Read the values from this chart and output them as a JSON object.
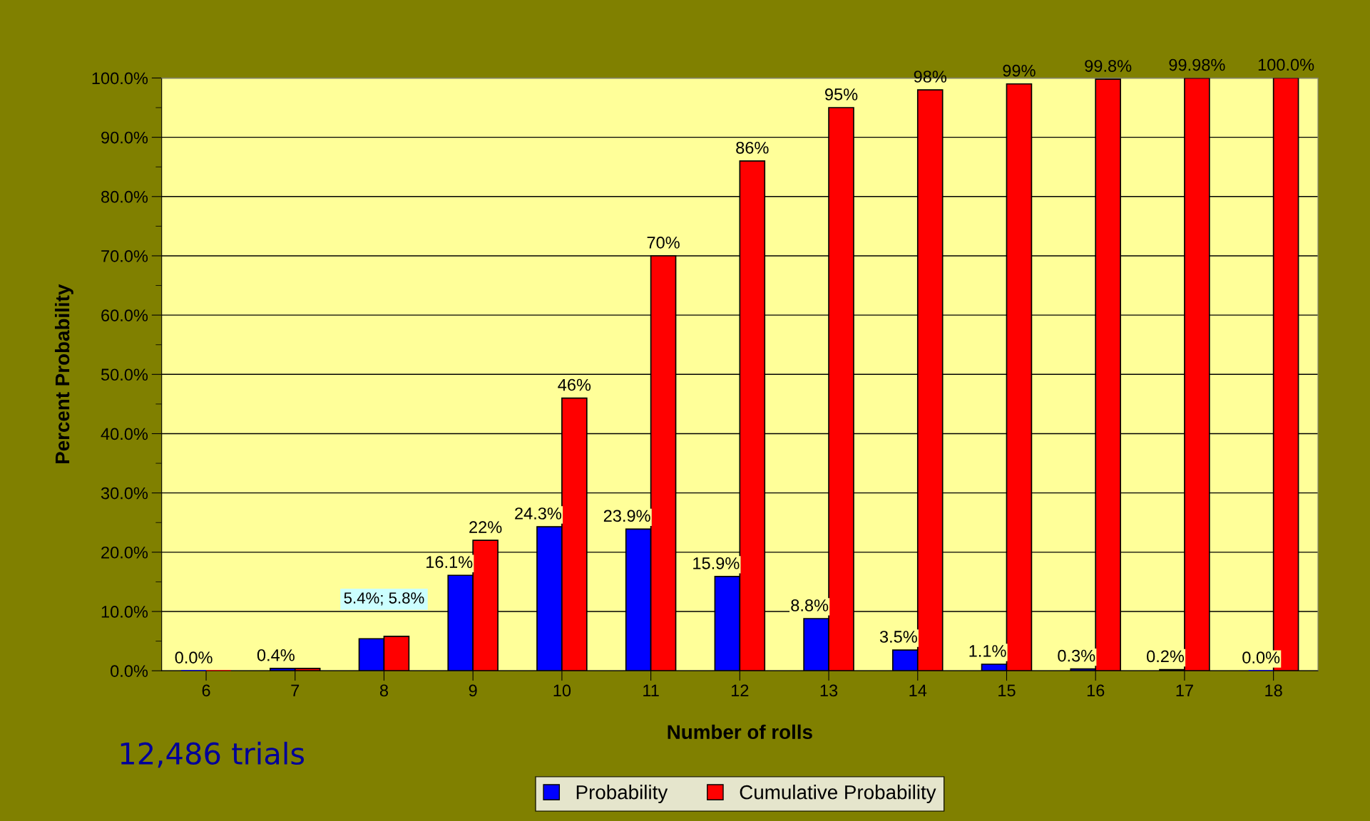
{
  "chart_data": {
    "type": "bar",
    "xlabel": "Number of rolls",
    "ylabel": "Percent Probability",
    "categories": [
      "6",
      "7",
      "8",
      "9",
      "10",
      "11",
      "12",
      "13",
      "14",
      "15",
      "16",
      "17",
      "18"
    ],
    "series": [
      {
        "name": "Probability",
        "color": "#0000ff",
        "values": [
          0.0,
          0.4,
          5.4,
          16.1,
          24.3,
          23.9,
          15.9,
          8.8,
          3.5,
          1.1,
          0.3,
          0.2,
          0.0
        ],
        "value_labels": [
          "0.0%",
          "0.4%",
          null,
          "16.1%",
          "24.3%",
          "23.9%",
          "15.9%",
          "8.8%",
          "3.5%",
          "1.1%",
          "0.3%",
          "0.2%",
          "0.0%"
        ]
      },
      {
        "name": "Cumulative Probability",
        "color": "#ff0000",
        "values": [
          0.0,
          0.4,
          5.8,
          22,
          46,
          70,
          86,
          95,
          98,
          99,
          99.8,
          99.98,
          100.0
        ],
        "value_labels": [
          null,
          null,
          null,
          "22%",
          "46%",
          "70%",
          "86%",
          "95%",
          "98%",
          "99%",
          "99.8%",
          "99.98%",
          "100.0%"
        ]
      }
    ],
    "annotations": [
      {
        "text": "5.4%; 5.8%",
        "x": "8",
        "y": 5.8
      },
      "12,486 trials"
    ],
    "ylim": [
      0,
      100
    ],
    "yticks": [
      {
        "value": 0,
        "label": "0.0%"
      },
      {
        "value": 10,
        "label": "10.0%"
      },
      {
        "value": 20,
        "label": "20.0%"
      },
      {
        "value": 30,
        "label": "30.0%"
      },
      {
        "value": 40,
        "label": "40.0%"
      },
      {
        "value": 50,
        "label": "50.0%"
      },
      {
        "value": 60,
        "label": "60.0%"
      },
      {
        "value": 70,
        "label": "70.0%"
      },
      {
        "value": 80,
        "label": "80.0%"
      },
      {
        "value": 90,
        "label": "90.0%"
      },
      {
        "value": 100,
        "label": "100.0%"
      }
    ],
    "grid": "y",
    "legend": "bottom"
  }
}
